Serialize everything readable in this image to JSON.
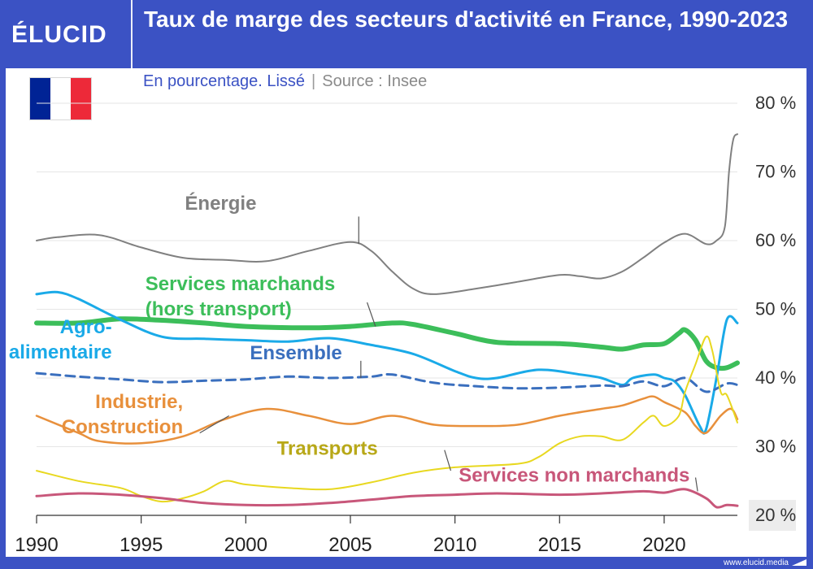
{
  "brand": {
    "logo": "ÉLUCID",
    "url": "www.elucid.media"
  },
  "header": {
    "title": "Taux de marge des secteurs d'activité en France, 1990-2023"
  },
  "subtitle": {
    "text": "En pourcentage. Lissé",
    "separator": "|",
    "source": "Source : Insee"
  },
  "flag": {
    "colors": [
      "#002395",
      "#ffffff",
      "#ed2939"
    ]
  },
  "chart_data": {
    "type": "line",
    "title": "Taux de marge des secteurs d'activité en France, 1990-2023",
    "ylabel": "En pourcentage. Lissé",
    "xlim": [
      1990,
      2023.5
    ],
    "ylim": [
      20,
      80
    ],
    "x_ticks": [
      1990,
      1995,
      2000,
      2005,
      2010,
      2015,
      2020
    ],
    "y_ticks": [
      {
        "value": 20,
        "label": "20 %"
      },
      {
        "value": 30,
        "label": "30 %"
      },
      {
        "value": 40,
        "label": "40 %"
      },
      {
        "value": 50,
        "label": "50 %"
      },
      {
        "value": 60,
        "label": "60 %"
      },
      {
        "value": 70,
        "label": "70 %"
      },
      {
        "value": 80,
        "label": "80 %"
      }
    ],
    "grid": true,
    "series": [
      {
        "name": "Énergie",
        "label": "Énergie",
        "color": "#808080",
        "width": 2,
        "dash": false,
        "points": [
          [
            1990,
            60
          ],
          [
            1991,
            60.5
          ],
          [
            1993,
            60.8
          ],
          [
            1995,
            59
          ],
          [
            1997,
            57.5
          ],
          [
            1999,
            57.2
          ],
          [
            2001,
            57
          ],
          [
            2003,
            58.5
          ],
          [
            2005,
            59.8
          ],
          [
            2006,
            58.5
          ],
          [
            2007,
            55.5
          ],
          [
            2008,
            53
          ],
          [
            2009,
            52.2
          ],
          [
            2011,
            53
          ],
          [
            2013,
            54
          ],
          [
            2015,
            55
          ],
          [
            2016,
            54.8
          ],
          [
            2017,
            54.5
          ],
          [
            2018,
            55.5
          ],
          [
            2019,
            57.5
          ],
          [
            2020,
            59.7
          ],
          [
            2021,
            61
          ],
          [
            2022,
            59.5
          ],
          [
            2022.5,
            60
          ],
          [
            2022.9,
            62
          ],
          [
            2023.1,
            70
          ],
          [
            2023.3,
            74.7
          ],
          [
            2023.5,
            75.5
          ]
        ]
      },
      {
        "name": "Services marchands (hors transport)",
        "label": "Services marchands\n(hors transport)",
        "color": "#3cbe5a",
        "width": 6,
        "dash": false,
        "points": [
          [
            1990,
            48
          ],
          [
            1992,
            48
          ],
          [
            1994,
            48.6
          ],
          [
            1996,
            48.4
          ],
          [
            1998,
            48
          ],
          [
            2000,
            47.5
          ],
          [
            2003,
            47.3
          ],
          [
            2005,
            47.5
          ],
          [
            2007,
            48
          ],
          [
            2008,
            47.8
          ],
          [
            2010,
            46.5
          ],
          [
            2012,
            45.2
          ],
          [
            2015,
            45
          ],
          [
            2017,
            44.5
          ],
          [
            2018,
            44.2
          ],
          [
            2019,
            44.8
          ],
          [
            2020,
            45
          ],
          [
            2020.7,
            46.5
          ],
          [
            2021,
            47
          ],
          [
            2021.5,
            45.5
          ],
          [
            2022,
            42.5
          ],
          [
            2022.5,
            41.5
          ],
          [
            2023,
            41.5
          ],
          [
            2023.5,
            42.2
          ]
        ]
      },
      {
        "name": "Agro-alimentaire",
        "label": "Agro-\nalimentaire",
        "color": "#1aaae8",
        "width": 3,
        "dash": false,
        "points": [
          [
            1990,
            52.2
          ],
          [
            1991,
            52.5
          ],
          [
            1992,
            51.5
          ],
          [
            1994,
            48.5
          ],
          [
            1996,
            46
          ],
          [
            1998,
            45.7
          ],
          [
            2000,
            45.5
          ],
          [
            2002,
            45.3
          ],
          [
            2004,
            45.8
          ],
          [
            2006,
            44.8
          ],
          [
            2008,
            43.5
          ],
          [
            2010,
            41
          ],
          [
            2011,
            40
          ],
          [
            2012,
            40
          ],
          [
            2014,
            41.2
          ],
          [
            2016,
            40.5
          ],
          [
            2017,
            40
          ],
          [
            2018,
            39
          ],
          [
            2018.5,
            40
          ],
          [
            2019.5,
            40.5
          ],
          [
            2020,
            40
          ],
          [
            2020.5,
            39.5
          ],
          [
            2021,
            37.5
          ],
          [
            2021.7,
            33
          ],
          [
            2022,
            32.5
          ],
          [
            2022.5,
            40
          ],
          [
            2023,
            48.5
          ],
          [
            2023.5,
            48
          ]
        ]
      },
      {
        "name": "Ensemble",
        "label": "Ensemble",
        "color": "#3a6fbe",
        "width": 3,
        "dash": true,
        "points": [
          [
            1990,
            40.7
          ],
          [
            1992,
            40.2
          ],
          [
            1994,
            39.8
          ],
          [
            1996,
            39.4
          ],
          [
            1998,
            39.6
          ],
          [
            2000,
            39.8
          ],
          [
            2002,
            40.2
          ],
          [
            2004,
            40
          ],
          [
            2006,
            40.2
          ],
          [
            2007,
            40.5
          ],
          [
            2009,
            39.3
          ],
          [
            2011,
            38.8
          ],
          [
            2013,
            38.5
          ],
          [
            2015,
            38.6
          ],
          [
            2017,
            38.9
          ],
          [
            2018,
            38.8
          ],
          [
            2019,
            39.5
          ],
          [
            2020,
            38.8
          ],
          [
            2021,
            40
          ],
          [
            2022,
            38
          ],
          [
            2023,
            39.2
          ],
          [
            2023.5,
            39
          ]
        ]
      },
      {
        "name": "Industrie, Construction",
        "label": "Industrie,\nConstruction",
        "color": "#e8903c",
        "width": 2.5,
        "dash": false,
        "points": [
          [
            1990,
            34.5
          ],
          [
            1992,
            32
          ],
          [
            1993,
            30.8
          ],
          [
            1995,
            30.5
          ],
          [
            1997,
            31.5
          ],
          [
            1999,
            34
          ],
          [
            2001,
            35.5
          ],
          [
            2003,
            34.5
          ],
          [
            2005,
            33.3
          ],
          [
            2007,
            34.5
          ],
          [
            2009,
            33.2
          ],
          [
            2011,
            33
          ],
          [
            2013,
            33.2
          ],
          [
            2015,
            34.5
          ],
          [
            2017,
            35.5
          ],
          [
            2018,
            36
          ],
          [
            2019,
            37
          ],
          [
            2019.5,
            37.3
          ],
          [
            2020,
            36.5
          ],
          [
            2021,
            35
          ],
          [
            2021.5,
            33
          ],
          [
            2022,
            32
          ],
          [
            2022.7,
            34.5
          ],
          [
            2023.2,
            35.5
          ],
          [
            2023.5,
            34
          ]
        ]
      },
      {
        "name": "Transports",
        "label": "Transports",
        "color": "#e8d820",
        "width": 2,
        "dash": false,
        "points": [
          [
            1990,
            26.5
          ],
          [
            1992,
            25
          ],
          [
            1994,
            24
          ],
          [
            1995,
            22.8
          ],
          [
            1996,
            22
          ],
          [
            1997,
            22.5
          ],
          [
            1998,
            23.5
          ],
          [
            1999,
            25
          ],
          [
            2000,
            24.5
          ],
          [
            2002,
            24
          ],
          [
            2004,
            23.8
          ],
          [
            2006,
            24.8
          ],
          [
            2008,
            26.2
          ],
          [
            2010,
            27
          ],
          [
            2013,
            27.5
          ],
          [
            2014,
            28.5
          ],
          [
            2015,
            30.5
          ],
          [
            2016,
            31.5
          ],
          [
            2017,
            31.5
          ],
          [
            2018,
            31
          ],
          [
            2019,
            33.5
          ],
          [
            2019.5,
            34.5
          ],
          [
            2020,
            33
          ],
          [
            2020.7,
            34.5
          ],
          [
            2021,
            38
          ],
          [
            2021.5,
            42
          ],
          [
            2022,
            46
          ],
          [
            2022.3,
            44
          ],
          [
            2022.7,
            38
          ],
          [
            2023,
            37.5
          ],
          [
            2023.5,
            33.5
          ]
        ]
      },
      {
        "name": "Services non marchands",
        "label": "Services non marchands",
        "color": "#c8577a",
        "width": 3,
        "dash": false,
        "points": [
          [
            1990,
            22.8
          ],
          [
            1992,
            23.2
          ],
          [
            1994,
            23
          ],
          [
            1996,
            22.5
          ],
          [
            1998,
            21.8
          ],
          [
            2000,
            21.5
          ],
          [
            2002,
            21.5
          ],
          [
            2004,
            21.8
          ],
          [
            2006,
            22.3
          ],
          [
            2008,
            22.8
          ],
          [
            2010,
            23
          ],
          [
            2012,
            23.2
          ],
          [
            2015,
            23
          ],
          [
            2017,
            23.2
          ],
          [
            2019,
            23.5
          ],
          [
            2020,
            23.3
          ],
          [
            2021,
            23.8
          ],
          [
            2022,
            22.5
          ],
          [
            2022.5,
            21.2
          ],
          [
            2023,
            21.5
          ],
          [
            2023.5,
            21.4
          ]
        ]
      }
    ],
    "annotations": [
      {
        "series": "Énergie",
        "label_xy": [
          1998.8,
          64.5
        ],
        "align": "middle",
        "to": [
          2005.4,
          59.5
        ],
        "elbow": [
          2005.4,
          63.5
        ]
      },
      {
        "series": "Services marchands (hors transport)",
        "label_xy": [
          1995.2,
          52.8
        ],
        "align": "start",
        "to": [
          2006.2,
          47.5
        ],
        "elbow": [
          2005.8,
          51
        ]
      },
      {
        "series": "Agro-alimentaire",
        "label_xy": [
          1993.6,
          46.5
        ],
        "align": "end",
        "to": [
          1996.8,
          46
        ],
        "elbow": [
          1996.8,
          46
        ]
      },
      {
        "series": "Ensemble",
        "label_xy": [
          2002.4,
          42.7
        ],
        "align": "middle",
        "to": [
          2005.5,
          40
        ],
        "elbow": [
          2005.5,
          42.5
        ]
      },
      {
        "series": "Industrie, Construction",
        "label_xy": [
          1997,
          35.6
        ],
        "align": "end",
        "to": [
          1999.2,
          34.5
        ],
        "elbow": [
          1997.8,
          32
        ]
      },
      {
        "series": "Transports",
        "label_xy": [
          2003.9,
          28.8
        ],
        "align": "middle",
        "to": [
          2009.8,
          26.5
        ],
        "elbow": [
          2009.5,
          29.5
        ]
      },
      {
        "series": "Services non marchands",
        "label_xy": [
          2015.7,
          24.9
        ],
        "align": "middle",
        "to": [
          2021.6,
          23.5
        ],
        "elbow": [
          2021.5,
          25.5
        ]
      }
    ]
  }
}
